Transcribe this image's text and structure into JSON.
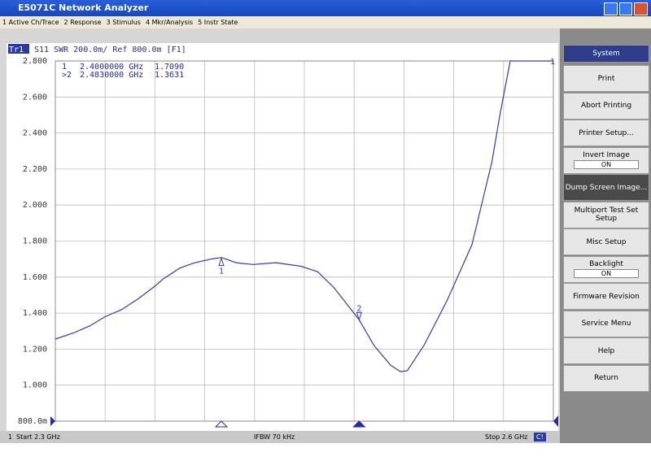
{
  "window": {
    "title": "E5071C Network Analyzer",
    "menu": [
      "1 Active Ch/Trace",
      "2 Response",
      "3 Stimulus",
      "4 Mkr/Analysis",
      "5 Instr State"
    ]
  },
  "softkeys": {
    "title": "System",
    "items": [
      {
        "label": "Print"
      },
      {
        "label": "Abort Printing"
      },
      {
        "label": "Printer Setup..."
      },
      {
        "label": "Invert Image",
        "state": "ON"
      },
      {
        "label": "Dump Screen Image..."
      },
      {
        "label": "Multiport Test Set Setup"
      },
      {
        "label": "Misc Setup"
      },
      {
        "label": "Backlight",
        "state": "ON"
      },
      {
        "label": "Firmware Revision"
      },
      {
        "label": "Service Menu"
      },
      {
        "label": "Help"
      },
      {
        "label": "Return"
      }
    ]
  },
  "status": {
    "channel": "1",
    "start": "Start 2.3 GHz",
    "ifbw": "IFBW 70 kHz",
    "stop": "Stop 2.6 GHz",
    "indicator": "C!"
  },
  "chart_data": {
    "type": "line",
    "trace": "Tr1",
    "title": "S11 SWR 200.0m/ Ref 800.0m [F1]",
    "x": [
      2.3,
      2.311,
      2.321,
      2.33,
      2.34,
      2.35,
      2.36,
      2.365,
      2.375,
      2.384,
      2.394,
      2.4,
      2.409,
      2.419,
      2.433,
      2.448,
      2.458,
      2.468,
      2.483,
      2.492,
      2.502,
      2.508,
      2.512,
      2.522,
      2.536,
      2.551,
      2.563,
      2.568,
      2.574,
      2.6
    ],
    "series": [
      {
        "name": "1",
        "color": "#3a3aa8",
        "values": [
          1.256,
          1.29,
          1.33,
          1.38,
          1.42,
          1.48,
          1.55,
          1.59,
          1.65,
          1.68,
          1.7,
          1.709,
          1.68,
          1.67,
          1.68,
          1.66,
          1.63,
          1.54,
          1.363,
          1.22,
          1.11,
          1.075,
          1.08,
          1.22,
          1.47,
          1.78,
          2.24,
          2.51,
          2.8,
          2.8
        ]
      }
    ],
    "xlim": [
      2.3,
      2.6
    ],
    "ylim": [
      0.8,
      2.8
    ],
    "yticks": [
      {
        "value": 0.8,
        "label": "800.0m"
      },
      {
        "value": 1,
        "label": "1.000"
      },
      {
        "value": 1.2,
        "label": "1.200"
      },
      {
        "value": 1.4,
        "label": "1.400"
      },
      {
        "value": 1.6,
        "label": "1.600"
      },
      {
        "value": 1.8,
        "label": "1.800"
      },
      {
        "value": 2,
        "label": "2.000"
      },
      {
        "value": 2.2,
        "label": "2.200"
      },
      {
        "value": 2.4,
        "label": "2.400"
      },
      {
        "value": 2.6,
        "label": "2.600"
      },
      {
        "value": 2.8,
        "label": "2.800"
      }
    ],
    "grid": true,
    "markers": {
      "names": [
        "1",
        "2"
      ],
      "readout_names": [
        "1",
        ">2"
      ],
      "x": [
        2.4,
        2.483
      ],
      "x_labels": [
        "2.4000000 GHz",
        "2.4830000 GHz"
      ],
      "values": [
        1.709,
        1.3631
      ],
      "value_labels": [
        "1.7090",
        "1.3631"
      ]
    }
  }
}
